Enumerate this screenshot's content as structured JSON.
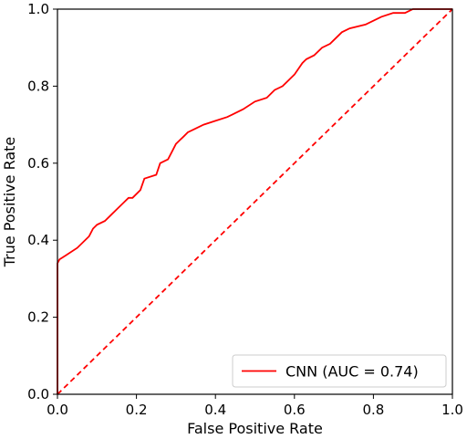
{
  "chart_data": {
    "type": "line",
    "title": "",
    "xlabel": "False Positive Rate",
    "ylabel": "True Positive Rate",
    "xlim": [
      0.0,
      1.0
    ],
    "ylim": [
      0.0,
      1.0
    ],
    "x_ticks": [
      "0.0",
      "0.2",
      "0.4",
      "0.6",
      "0.8",
      "1.0"
    ],
    "y_ticks": [
      "0.0",
      "0.2",
      "0.4",
      "0.6",
      "0.8",
      "1.0"
    ],
    "grid": false,
    "legend_position": "lower-right",
    "series": [
      {
        "name": "CNN (AUC = 0.74)",
        "color": "#ff0000",
        "style": "solid",
        "x": [
          0.0,
          0.0,
          0.005,
          0.02,
          0.05,
          0.08,
          0.09,
          0.1,
          0.12,
          0.14,
          0.15,
          0.17,
          0.18,
          0.19,
          0.21,
          0.22,
          0.25,
          0.26,
          0.28,
          0.29,
          0.3,
          0.31,
          0.32,
          0.33,
          0.35,
          0.37,
          0.4,
          0.43,
          0.45,
          0.47,
          0.5,
          0.53,
          0.55,
          0.57,
          0.6,
          0.62,
          0.63,
          0.65,
          0.67,
          0.69,
          0.7,
          0.72,
          0.74,
          0.78,
          0.8,
          0.82,
          0.85,
          0.88,
          0.9,
          0.92,
          0.95,
          1.0
        ],
        "y": [
          0.0,
          0.34,
          0.35,
          0.36,
          0.38,
          0.41,
          0.43,
          0.44,
          0.45,
          0.47,
          0.48,
          0.5,
          0.51,
          0.51,
          0.53,
          0.56,
          0.57,
          0.6,
          0.61,
          0.63,
          0.65,
          0.66,
          0.67,
          0.68,
          0.69,
          0.7,
          0.71,
          0.72,
          0.73,
          0.74,
          0.76,
          0.77,
          0.79,
          0.8,
          0.83,
          0.86,
          0.87,
          0.88,
          0.9,
          0.91,
          0.92,
          0.94,
          0.95,
          0.96,
          0.97,
          0.98,
          0.99,
          0.99,
          1.0,
          1.0,
          1.0,
          1.0
        ]
      },
      {
        "name": "",
        "color": "#ff0000",
        "style": "dashed",
        "x": [
          0.0,
          1.0
        ],
        "y": [
          0.0,
          1.0
        ]
      }
    ],
    "legend": {
      "entries": [
        "CNN (AUC = 0.74)"
      ]
    }
  }
}
